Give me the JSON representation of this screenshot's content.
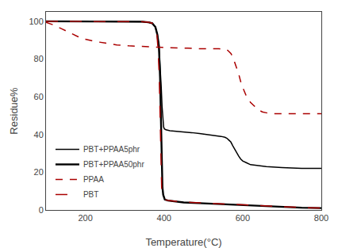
{
  "chart_data": {
    "type": "line",
    "xlabel": "Temperature(°C)",
    "ylabel": "Residue%",
    "xlim": [
      100,
      800
    ],
    "ylim": [
      0,
      105
    ],
    "xticks": [
      200,
      400,
      600,
      800
    ],
    "yticks": [
      0,
      20,
      40,
      60,
      80,
      100
    ],
    "grid": false,
    "legend": "lower left",
    "series": [
      {
        "name": "PBT+PPAA5phr",
        "color": "#000000",
        "line_style": "solid",
        "x": [
          100,
          330,
          345,
          360,
          370,
          378,
          383,
          387,
          390,
          393,
          395,
          397,
          399,
          401,
          405,
          415,
          430,
          450,
          470,
          490,
          510,
          530,
          545,
          555,
          560,
          565,
          570,
          575,
          580,
          585,
          590,
          595,
          600,
          610,
          620,
          640,
          660,
          700,
          750,
          800
        ],
        "values": [
          100,
          100,
          99.8,
          99.5,
          99,
          97,
          93,
          87,
          78,
          65,
          55,
          48,
          44,
          43,
          42.5,
          42,
          41.8,
          41.5,
          41,
          40.5,
          40,
          39.5,
          39,
          38.5,
          38,
          37,
          36,
          34,
          32,
          30,
          28.5,
          27,
          26,
          25,
          24,
          23.5,
          23,
          22.5,
          22,
          22
        ]
      },
      {
        "name": "PBT+PPAA50phr",
        "color": "#000000",
        "line_style": "solid",
        "x": [
          100,
          330,
          345,
          360,
          370,
          378,
          383,
          387,
          390,
          392,
          394,
          396,
          398,
          400,
          402,
          410,
          430,
          450,
          500,
          550,
          600,
          650,
          700,
          750,
          800
        ],
        "values": [
          100,
          100,
          99.8,
          99.5,
          99,
          97,
          93,
          87,
          70,
          50,
          25,
          12,
          8,
          6.5,
          5.5,
          5,
          4.5,
          4,
          3.5,
          3,
          2.5,
          2,
          1.5,
          1.2,
          1
        ]
      },
      {
        "name": "PPAA",
        "color": "#aa0000",
        "line_style": "dash",
        "x": [
          100,
          120,
          140,
          160,
          180,
          200,
          220,
          250,
          280,
          310,
          340,
          370,
          395,
          400,
          420,
          440,
          460,
          480,
          500,
          510,
          520,
          530,
          540,
          550,
          555,
          560,
          565,
          570,
          575,
          580,
          585,
          590,
          595,
          600,
          610,
          620,
          630,
          640,
          650,
          660,
          680,
          700,
          730,
          760,
          800
        ],
        "values": [
          99.5,
          98,
          96,
          94,
          92,
          90.5,
          89.5,
          88.5,
          87.5,
          87,
          86.8,
          86.5,
          86.2,
          86,
          86,
          86,
          85.8,
          85.5,
          85.5,
          85.5,
          85.5,
          85.5,
          85.5,
          85,
          85,
          85,
          84,
          83,
          81,
          78,
          75,
          72,
          68,
          65,
          60,
          57,
          55,
          53,
          52,
          51.5,
          51,
          51,
          51,
          51,
          51
        ]
      },
      {
        "name": "PBT",
        "color": "#aa0000",
        "line_style": "longdash",
        "x": [
          100,
          330,
          345,
          360,
          370,
          378,
          382,
          385,
          388,
          390,
          392,
          394,
          396,
          398,
          400,
          402,
          405,
          410,
          420,
          430,
          450,
          470,
          490,
          510,
          530,
          550,
          570,
          600,
          630,
          660,
          700,
          730,
          760,
          800
        ],
        "values": [
          100,
          100,
          99.8,
          99.5,
          99,
          97,
          93,
          85,
          70,
          50,
          25,
          12,
          8,
          6.5,
          6,
          5.5,
          5.2,
          5,
          4.8,
          4.5,
          4.2,
          4,
          3.8,
          3.5,
          3.2,
          3,
          2.8,
          2.5,
          2.2,
          2,
          1.8,
          1.5,
          1.2,
          1
        ]
      }
    ]
  }
}
